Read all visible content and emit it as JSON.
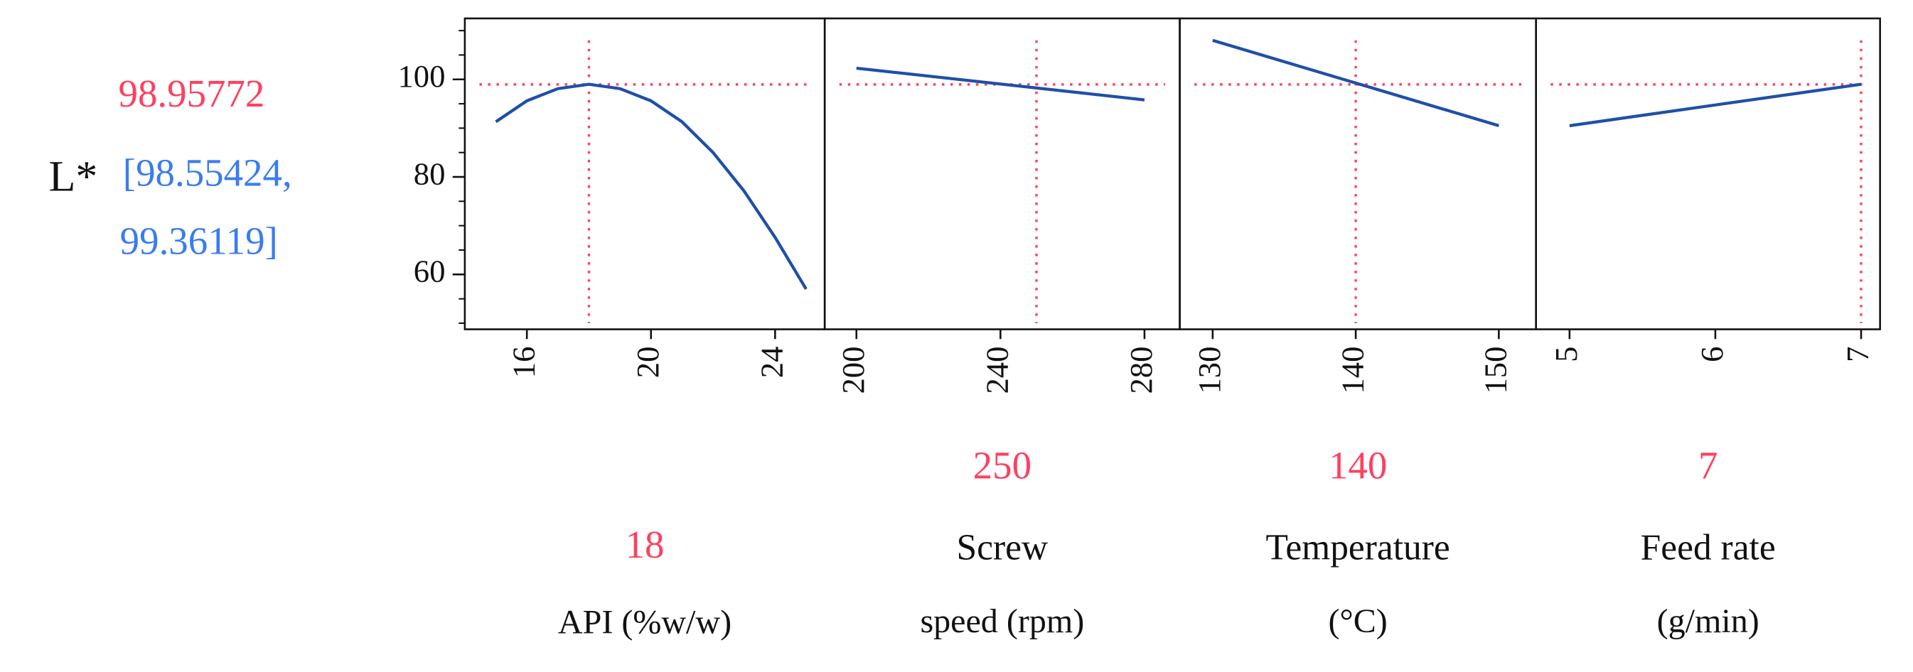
{
  "response": {
    "label": "L*",
    "prediction": 98.95772,
    "interval_labels": [
      "[98.55424,",
      "99.36119]"
    ]
  },
  "chart_data": [
    {
      "type": "line",
      "xlabel_lines": [
        "API (%w/w)"
      ],
      "current_x": 18,
      "color": "#1f4fa8",
      "x": [
        15,
        16,
        17,
        18,
        19,
        20,
        21,
        22,
        23,
        24,
        25
      ],
      "values": [
        91.3,
        95.6,
        98.1,
        99,
        98.1,
        95.6,
        91.3,
        85,
        77.1,
        67.6,
        57
      ],
      "xlim": [
        14,
        25.6
      ],
      "xticks": [
        16,
        20,
        24
      ],
      "ylim": [
        48.75,
        112.5
      ],
      "yticks": [
        60,
        80,
        100
      ],
      "yminorticks": [
        50,
        55,
        65,
        70,
        75,
        85,
        90,
        95,
        105,
        110
      ]
    },
    {
      "type": "line",
      "xlabel_lines": [
        "Screw",
        "speed (rpm)"
      ],
      "current_x": 250,
      "color": "#1f4fa8",
      "x": [
        200,
        280
      ],
      "values": [
        102.3,
        95.8
      ],
      "xlim": [
        191.2,
        289.8
      ],
      "xticks": [
        200,
        240,
        280
      ]
    },
    {
      "type": "line",
      "xlabel_lines": [
        "Temperature",
        "(°C)"
      ],
      "current_x": 140,
      "color": "#1f4fa8",
      "x": [
        130,
        150
      ],
      "values": [
        108,
        90.5
      ],
      "xlim": [
        127.7,
        152.6
      ],
      "xticks": [
        130,
        140,
        150
      ]
    },
    {
      "type": "line",
      "xlabel_lines": [
        "Feed rate",
        "(g/min)"
      ],
      "current_x": 7,
      "color": "#1f4fa8",
      "x": [
        5,
        7
      ],
      "values": [
        90.5,
        99
      ],
      "xlim": [
        4.77,
        7.13
      ],
      "xticks": [
        5,
        6,
        7
      ]
    }
  ]
}
